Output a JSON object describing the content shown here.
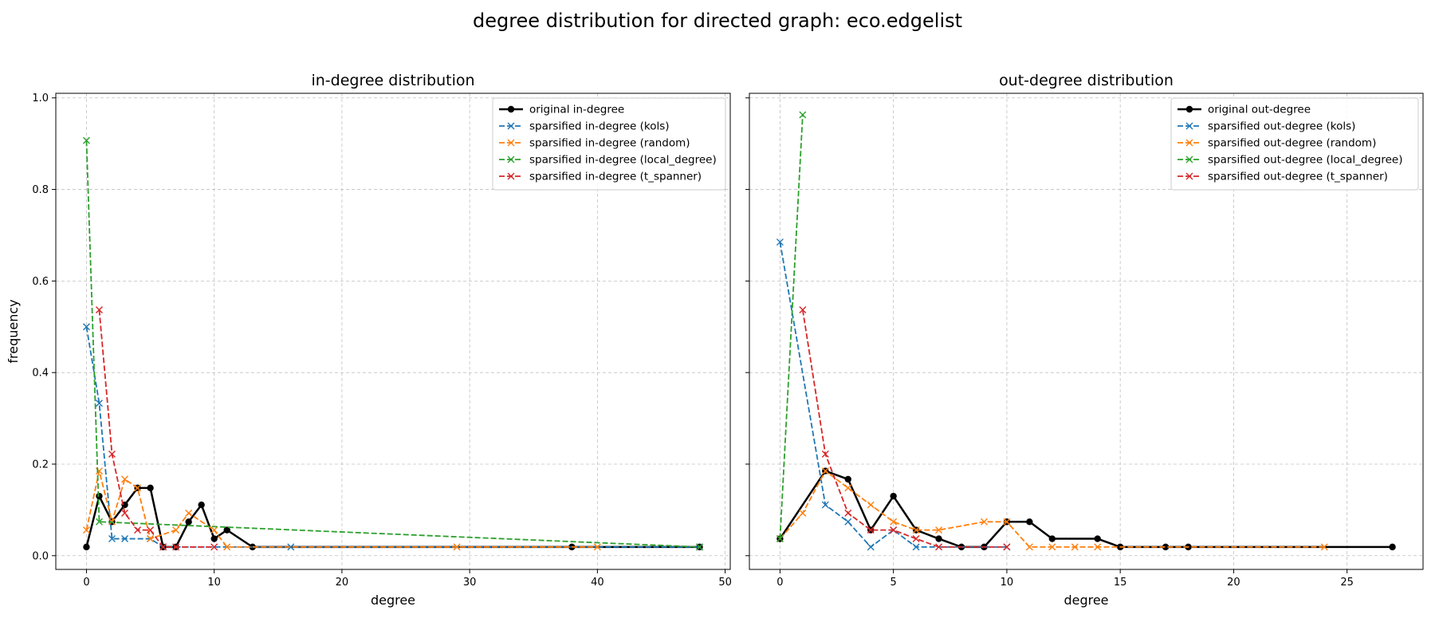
{
  "figure": {
    "suptitle": "degree distribution for directed graph: eco.edgelist"
  },
  "chart_data": [
    {
      "type": "line",
      "title": "in-degree distribution",
      "xlabel": "degree",
      "ylabel": "frequency",
      "xlim": [
        -2.4,
        50.4
      ],
      "ylim": [
        -0.03,
        1.01
      ],
      "xticks": [
        0,
        10,
        20,
        30,
        40,
        50
      ],
      "yticks": [
        0.0,
        0.2,
        0.4,
        0.6,
        0.8,
        1.0
      ],
      "ytick_labels": [
        "0.0",
        "0.2",
        "0.4",
        "0.6",
        "0.8",
        "1.0"
      ],
      "grid": true,
      "legend": "top-right",
      "series": [
        {
          "name": "original in-degree",
          "color": "#000000",
          "linestyle": "solid",
          "marker": "circle",
          "x": [
            0,
            1,
            2,
            3,
            4,
            5,
            6,
            7,
            8,
            9,
            10,
            11,
            13,
            38,
            48
          ],
          "y": [
            0.019,
            0.13,
            0.074,
            0.111,
            0.148,
            0.148,
            0.019,
            0.019,
            0.074,
            0.111,
            0.037,
            0.056,
            0.019,
            0.019,
            0.019
          ]
        },
        {
          "name": "sparsified in-degree (kols)",
          "color": "#1f77b4",
          "linestyle": "dashed",
          "marker": "x",
          "x": [
            0,
            1,
            2,
            3,
            5,
            6,
            16,
            48
          ],
          "y": [
            0.5,
            0.333,
            0.037,
            0.037,
            0.037,
            0.019,
            0.019,
            0.019
          ]
        },
        {
          "name": "sparsified in-degree (random)",
          "color": "#ff7f0e",
          "linestyle": "dashed",
          "marker": "x",
          "x": [
            0,
            1,
            2,
            3,
            4,
            5,
            7,
            8,
            10,
            11,
            29,
            40
          ],
          "y": [
            0.056,
            0.185,
            0.074,
            0.167,
            0.148,
            0.037,
            0.056,
            0.093,
            0.056,
            0.019,
            0.019,
            0.019
          ]
        },
        {
          "name": "sparsified in-degree (local_degree)",
          "color": "#2ca02c",
          "linestyle": "dashed",
          "marker": "x",
          "x": [
            0,
            1,
            48
          ],
          "y": [
            0.907,
            0.074,
            0.019
          ]
        },
        {
          "name": "sparsified in-degree (t_spanner)",
          "color": "#d62728",
          "linestyle": "dashed",
          "marker": "x",
          "x": [
            1,
            2,
            3,
            4,
            5,
            6,
            7,
            10
          ],
          "y": [
            0.537,
            0.222,
            0.093,
            0.056,
            0.056,
            0.019,
            0.019,
            0.019
          ]
        }
      ]
    },
    {
      "type": "line",
      "title": "out-degree distribution",
      "xlabel": "degree",
      "ylabel": "",
      "xlim": [
        -1.35,
        28.35
      ],
      "ylim": [
        -0.03,
        1.01
      ],
      "xticks": [
        0,
        5,
        10,
        15,
        20,
        25
      ],
      "yticks": [
        0.0,
        0.2,
        0.4,
        0.6,
        0.8,
        1.0
      ],
      "ytick_labels": [],
      "grid": true,
      "legend": "top-right",
      "series": [
        {
          "name": "original out-degree",
          "color": "#000000",
          "linestyle": "solid",
          "marker": "circle",
          "x": [
            0,
            2,
            3,
            4,
            5,
            6,
            7,
            8,
            9,
            10,
            11,
            12,
            14,
            15,
            17,
            18,
            27
          ],
          "y": [
            0.037,
            0.185,
            0.167,
            0.056,
            0.13,
            0.056,
            0.037,
            0.019,
            0.019,
            0.074,
            0.074,
            0.037,
            0.037,
            0.019,
            0.019,
            0.019,
            0.019
          ]
        },
        {
          "name": "sparsified out-degree (kols)",
          "color": "#1f77b4",
          "linestyle": "dashed",
          "marker": "x",
          "x": [
            0,
            2,
            3,
            4,
            5,
            6,
            10
          ],
          "y": [
            0.685,
            0.111,
            0.074,
            0.019,
            0.056,
            0.019,
            0.019
          ]
        },
        {
          "name": "sparsified out-degree (random)",
          "color": "#ff7f0e",
          "linestyle": "dashed",
          "marker": "x",
          "x": [
            0,
            1,
            2,
            3,
            4,
            5,
            6,
            7,
            9,
            10,
            11,
            12,
            13,
            14,
            24
          ],
          "y": [
            0.037,
            0.093,
            0.185,
            0.148,
            0.111,
            0.074,
            0.056,
            0.056,
            0.074,
            0.074,
            0.019,
            0.019,
            0.019,
            0.019,
            0.019
          ]
        },
        {
          "name": "sparsified out-degree (local_degree)",
          "color": "#2ca02c",
          "linestyle": "dashed",
          "marker": "x",
          "x": [
            0,
            1
          ],
          "y": [
            0.037,
            0.963
          ]
        },
        {
          "name": "sparsified out-degree (t_spanner)",
          "color": "#d62728",
          "linestyle": "dashed",
          "marker": "x",
          "x": [
            1,
            2,
            3,
            4,
            5,
            6,
            7,
            10
          ],
          "y": [
            0.537,
            0.222,
            0.093,
            0.056,
            0.056,
            0.037,
            0.019,
            0.019
          ]
        }
      ]
    }
  ]
}
